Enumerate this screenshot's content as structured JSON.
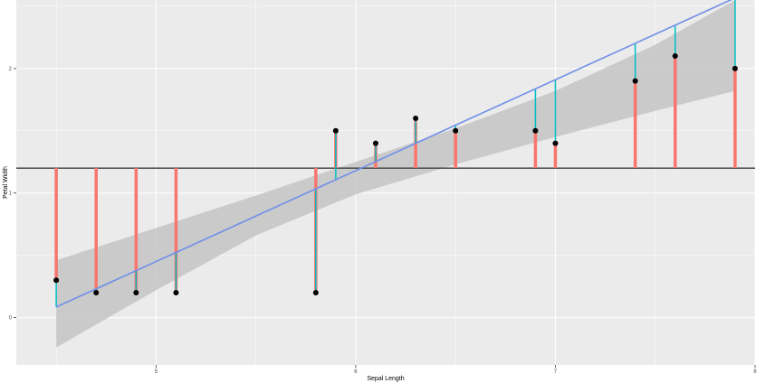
{
  "chart_data": {
    "type": "scatter",
    "title": "",
    "xlabel": "Sepal Length",
    "ylabel": "Petal Width",
    "xlim": [
      4.3,
      8.0
    ],
    "ylim": [
      -0.38,
      2.55
    ],
    "x_ticks": [
      5,
      6,
      7,
      8
    ],
    "y_ticks": [
      0,
      1,
      2
    ],
    "grid": true,
    "legend": "none",
    "mean_line": 1.2,
    "regression": {
      "intercept": -3.2,
      "slope": 0.73
    },
    "confidence_band": {
      "x": [
        4.5,
        5.0,
        5.5,
        6.0,
        6.5,
        7.0,
        7.5,
        7.9
      ],
      "lower": [
        -0.24,
        0.22,
        0.66,
        0.99,
        1.23,
        1.45,
        1.66,
        1.82
      ],
      "upper": [
        0.46,
        0.72,
        0.98,
        1.25,
        1.52,
        1.82,
        2.19,
        2.55
      ]
    },
    "series": [
      {
        "x": [
          4.5,
          4.7,
          4.9,
          5.1,
          5.8,
          5.9,
          6.1,
          6.3,
          6.5,
          6.9,
          7.0,
          7.4,
          7.6,
          7.9
        ],
        "y": [
          0.3,
          0.2,
          0.2,
          0.2,
          0.2,
          1.5,
          1.4,
          1.6,
          1.5,
          1.5,
          1.4,
          1.9,
          2.1,
          2.0
        ]
      }
    ],
    "colors": {
      "panel": "#ebebeb",
      "gridline": "#ffffff",
      "point": "#000000",
      "regression": "#6f8fe8",
      "band": "#c4c4c4",
      "mean_line": "#555555",
      "segment_to_mean": "#f8766d",
      "segment_to_fit": "#00bfc4"
    }
  }
}
